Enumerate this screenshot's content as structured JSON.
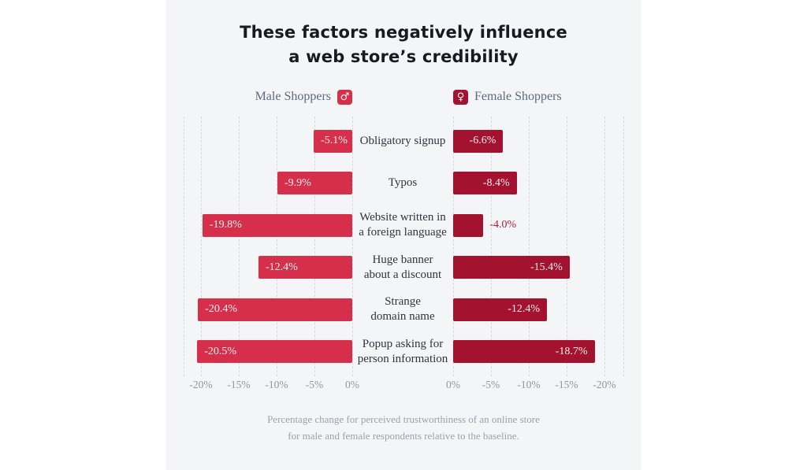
{
  "title": {
    "line1": "These factors negatively influence",
    "line2": "a web store’s credibility"
  },
  "legend": {
    "male": {
      "label": "Male Shoppers",
      "symbol": "♂"
    },
    "female": {
      "label": "Female Shoppers",
      "symbol": "♀"
    }
  },
  "colors": {
    "male": "#d62f4b",
    "female": "#a3122e",
    "value_outside": "#b0203a",
    "panel_bg": "#f3f5f7"
  },
  "chart_data": {
    "type": "bar",
    "variant": "diverging-horizontal",
    "unit": "%",
    "title": "These factors negatively influence a web store’s credibility",
    "categories": [
      [
        "Obligatory signup"
      ],
      [
        "Typos"
      ],
      [
        "Website written in",
        "a foreign language"
      ],
      [
        "Huge banner",
        "about a discount"
      ],
      [
        "Strange",
        "domain name"
      ],
      [
        "Popup asking for",
        "person information"
      ]
    ],
    "series": [
      {
        "name": "Male Shoppers",
        "side": "left",
        "values": [
          -5.1,
          -9.9,
          -19.8,
          -12.4,
          -20.4,
          -20.5
        ]
      },
      {
        "name": "Female Shoppers",
        "side": "right",
        "values": [
          -6.6,
          -8.4,
          -4.0,
          -15.4,
          -12.4,
          -18.7
        ]
      }
    ],
    "value_labels": {
      "male": [
        "-5.1%",
        "-9.9%",
        "-19.8%",
        "-12.4%",
        "-20.4%",
        "-20.5%"
      ],
      "female": [
        "-6.6%",
        "-8.4%",
        "-4.0%",
        "-15.4%",
        "-12.4%",
        "-18.7%"
      ]
    },
    "axis": {
      "range": [
        0,
        -20
      ],
      "tick_labels_left": [
        "-20%",
        "-15%",
        "-10%",
        "-5%",
        "0%"
      ],
      "tick_labels_right": [
        "0%",
        "-5%",
        "-10%",
        "-15%",
        "-20%"
      ],
      "gridlines": "dashed-vertical"
    },
    "legend_position": "top"
  },
  "footer": {
    "line1": "Percentage change for perceived trustworthiness of an online store",
    "line2": "for male and female respondents relative to the baseline."
  }
}
